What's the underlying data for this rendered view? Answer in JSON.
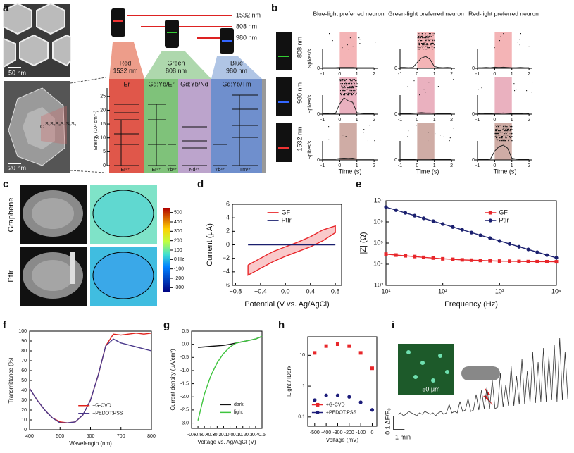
{
  "panel_labels": [
    "a",
    "b",
    "c",
    "d",
    "e",
    "f",
    "g",
    "h",
    "i"
  ],
  "panel_a": {
    "scale_bars": [
      "50 nm",
      "20 nm"
    ],
    "shell_labels": [
      "C",
      "S₁S₂S₃S₄S₅S₆"
    ],
    "wavelengths": [
      "1532 nm",
      "808 nm",
      "980 nm"
    ],
    "columns": [
      {
        "color_name": "Red",
        "wavelength": "1532 nm",
        "ion": "Er"
      },
      {
        "color_name": "Green",
        "wavelength": "808 nm",
        "ion": "Gd:Yb/Er"
      },
      {
        "ion": "Gd:Yb/Nd"
      },
      {
        "color_name": "Blue",
        "wavelength": "980 nm",
        "ion": "Gd:Yb/Tm"
      }
    ],
    "energy_axis_label": "Energy (10³ cm⁻¹)",
    "energy_ticks": [
      0,
      5,
      10,
      15,
      20,
      25
    ],
    "energy_lim": [
      0,
      28
    ],
    "ions": [
      "Er³⁺",
      "Er³⁺",
      "Yb³⁺",
      "Nd³⁺",
      "Yb³⁺",
      "Tm³⁺"
    ]
  },
  "panel_b": {
    "columns": [
      "Blue-light preferred neuron",
      "Green-light preferred neuron",
      "Red-light preferred neuron"
    ],
    "column_colors": [
      "#3b4cc0",
      "#2e9b3a",
      "#b22222"
    ],
    "rows": [
      "808 nm",
      "980 nm",
      "1532 nm"
    ],
    "row_shade_colors": [
      "#f2a7a9",
      "#e6a3b4",
      "#c79d95"
    ],
    "ylabel": "Spikes/s",
    "xlabel": "Time (s)",
    "xticks": [
      -1,
      0,
      1,
      2
    ],
    "xlim": [
      -1,
      2.2
    ],
    "yticks": [
      0
    ],
    "ylim": [
      0,
      100
    ],
    "stimulus": [
      0,
      1
    ],
    "x": [
      -1,
      -0.75,
      -0.5,
      -0.25,
      0,
      0.25,
      0.5,
      0.75,
      1,
      1.25,
      1.5,
      1.75,
      2
    ],
    "psth": [
      [
        [
          2,
          2,
          2,
          2,
          3,
          3,
          3,
          3,
          2,
          2,
          2,
          2,
          2
        ],
        [
          3,
          3,
          2,
          3,
          20,
          35,
          40,
          30,
          6,
          3,
          2,
          3,
          2
        ],
        [
          2,
          2,
          3,
          2,
          4,
          3,
          4,
          3,
          2,
          2,
          3,
          2,
          2
        ]
      ],
      [
        [
          2,
          2,
          3,
          2,
          35,
          55,
          45,
          40,
          5,
          3,
          2,
          2,
          2
        ],
        [
          2,
          2,
          2,
          3,
          4,
          5,
          4,
          4,
          3,
          2,
          2,
          2,
          2
        ],
        [
          2,
          3,
          2,
          2,
          3,
          3,
          4,
          3,
          2,
          2,
          2,
          3,
          2
        ]
      ],
      [
        [
          3,
          3,
          3,
          3,
          5,
          6,
          5,
          6,
          3,
          3,
          3,
          3,
          3
        ],
        [
          2,
          2,
          2,
          2,
          3,
          3,
          3,
          3,
          2,
          2,
          2,
          2,
          2
        ],
        [
          2,
          2,
          2,
          3,
          30,
          45,
          50,
          40,
          6,
          3,
          2,
          2,
          2
        ]
      ]
    ]
  },
  "panel_c": {
    "rows": [
      "Graphene",
      "PtIr"
    ],
    "colorbar": {
      "lim": [
        -350,
        550
      ],
      "ticks": [
        500,
        400,
        300,
        200,
        100,
        {
          "value": 0,
          "label": "0 Hz"
        },
        -100,
        -200,
        -300
      ]
    }
  },
  "chart_data": [
    {
      "type": "line",
      "panel": "d",
      "xlabel": "Potential (V vs. Ag/AgCl)",
      "ylabel": "Current (μA)",
      "xlim": [
        -0.85,
        0.9
      ],
      "ylim": [
        -6,
        6
      ],
      "xticks": [
        {
          "value": -0.8,
          "label": "−0.8"
        },
        {
          "value": -0.4,
          "label": "−0.4"
        },
        {
          "value": 0,
          "label": "0.0"
        },
        0.4,
        0.8
      ],
      "yticks": [
        {
          "value": -6,
          "label": "−6"
        },
        {
          "value": -4,
          "label": "−4"
        },
        {
          "value": -2,
          "label": "−2"
        },
        0,
        2,
        4,
        6
      ],
      "legend": "upper center",
      "series": [
        {
          "name": "GF",
          "color": "#e8262a",
          "filled": true,
          "x": [
            -0.6,
            -0.4,
            -0.2,
            0,
            0.2,
            0.4,
            0.6,
            0.8,
            0.8,
            0.6,
            0.4,
            0.2,
            0,
            -0.2,
            -0.4,
            -0.6,
            -0.6
          ],
          "values": [
            -3,
            -2,
            -1,
            -0.3,
            0.4,
            1.2,
            2.2,
            2.8,
            1.8,
            0.6,
            -0.3,
            -1,
            -1.7,
            -2.5,
            -3.5,
            -4.5,
            -3
          ]
        },
        {
          "name": "PtIr",
          "color": "#1a1f6e",
          "x": [
            -0.6,
            0.8
          ],
          "values": [
            0,
            0
          ]
        }
      ]
    },
    {
      "type": "line",
      "panel": "e",
      "xlabel": "Frequency (Hz)",
      "ylabel": "|Z| (Ω)",
      "log_x": true,
      "log_y": true,
      "xlim": [
        10,
        10000
      ],
      "ylim": [
        1000,
        10000000
      ],
      "xticks": [
        {
          "value": 10,
          "label": "10¹"
        },
        {
          "value": 100,
          "label": "10²"
        },
        {
          "value": 1000,
          "label": "10³"
        },
        {
          "value": 10000,
          "label": "10⁴"
        }
      ],
      "yticks": [
        {
          "value": 1000,
          "label": "10³"
        },
        {
          "value": 10000,
          "label": "10⁴"
        },
        {
          "value": 100000,
          "label": "10⁵"
        },
        {
          "value": 1000000,
          "label": "10⁶"
        },
        {
          "value": 10000000,
          "label": "10⁷"
        }
      ],
      "legend": "upper right",
      "x": [
        10,
        15,
        22,
        32,
        46,
        68,
        100,
        150,
        220,
        320,
        460,
        680,
        1000,
        1500,
        2200,
        3200,
        4600,
        6800,
        10000
      ],
      "series": [
        {
          "name": "GF",
          "color": "#e8262a",
          "marker": "square",
          "values": [
            30000,
            27000,
            25000,
            23000,
            21000,
            19500,
            18000,
            17000,
            16000,
            15500,
            15000,
            14500,
            14000,
            13800,
            13500,
            13300,
            13200,
            13100,
            13000
          ]
        },
        {
          "name": "PtIr",
          "color": "#1a1f6e",
          "marker": "circle",
          "values": [
            5000000,
            3620000,
            2670000,
            1980000,
            1480000,
            1080000,
            794000,
            574000,
            423000,
            313000,
            234000,
            171000,
            126000,
            91000,
            67000,
            50000,
            37000,
            27000,
            20000
          ]
        }
      ]
    },
    {
      "type": "line",
      "panel": "f",
      "xlabel": "Wavelength (nm)",
      "ylabel": "Transmittance (%)",
      "xlim": [
        400,
        800
      ],
      "ylim": [
        0,
        100
      ],
      "xticks": [
        400,
        500,
        600,
        700,
        800
      ],
      "yticks": [
        0,
        10,
        20,
        30,
        40,
        50,
        60,
        70,
        80,
        90,
        100
      ],
      "legend": "lower right",
      "x": [
        400,
        425,
        450,
        475,
        500,
        525,
        550,
        575,
        600,
        625,
        650,
        675,
        700,
        725,
        750,
        775,
        800
      ],
      "series": [
        {
          "name": "+G-CVD",
          "color": "#e0201b",
          "values": [
            42,
            30,
            20,
            12,
            8,
            7,
            8,
            15,
            30,
            55,
            85,
            97,
            96,
            97,
            98,
            97,
            98
          ]
        },
        {
          "name": "+PEDOT:PSS",
          "color": "#4b3a8c",
          "values": [
            42,
            30,
            20,
            12,
            7,
            7,
            8,
            15,
            30,
            55,
            85,
            92,
            88,
            86,
            84,
            82,
            80
          ]
        }
      ]
    },
    {
      "type": "line",
      "panel": "g",
      "xlabel": "Voltage vs. Ag/AgCl (V)",
      "ylabel": "Current density (μA/cm²)",
      "xlim": [
        -0.6,
        0.5
      ],
      "ylim": [
        -3.2,
        0.5
      ],
      "xticks": [
        -0.6,
        -0.5,
        -0.4,
        -0.3,
        -0.2,
        -0.1,
        {
          "value": 0,
          "label": "0.0"
        },
        0.1,
        0.2,
        0.3,
        0.4,
        0.5
      ],
      "yticks": [
        0.5,
        {
          "value": 0,
          "label": "0.0"
        },
        -0.5,
        {
          "value": -1,
          "label": "-1.0"
        },
        -1.5,
        {
          "value": -2,
          "label": "-2.0"
        },
        -2.5,
        {
          "value": -3,
          "label": "-3.0"
        }
      ],
      "legend": "lower right",
      "x": [
        -0.5,
        -0.4,
        -0.3,
        -0.2,
        -0.1,
        0,
        0.1,
        0.2,
        0.3,
        0.4,
        0.5
      ],
      "series": [
        {
          "name": "dark",
          "color": "#111111",
          "values": [
            -0.12,
            -0.1,
            -0.08,
            -0.06,
            -0.04,
            0,
            0.05,
            0.1,
            0.15,
            0.2,
            0.3
          ]
        },
        {
          "name": "light",
          "color": "#3ec43e",
          "values": [
            -2.9,
            -1.9,
            -1.2,
            -0.7,
            -0.35,
            -0.1,
            0.05,
            0.1,
            0.15,
            0.2,
            0.3
          ]
        }
      ]
    },
    {
      "type": "scatter",
      "panel": "h",
      "xlabel": "Voltage (mV)",
      "ylabel": "ILight / IDark",
      "log_y": true,
      "xlim": [
        -560,
        40
      ],
      "ylim": [
        0.05,
        40
      ],
      "xticks": [
        -500,
        -400,
        -300,
        -200,
        -100,
        0
      ],
      "yticks": [
        0.1,
        1,
        10
      ],
      "legend": "lower left",
      "x": [
        -500,
        -400,
        -300,
        -200,
        -100,
        0
      ],
      "series": [
        {
          "name": "+G-CVD",
          "color": "#e8262a",
          "marker": "square",
          "values": [
            12,
            20,
            23,
            20,
            12,
            3.8
          ]
        },
        {
          "name": "+PEDOT:PSS",
          "color": "#1c1c7a",
          "marker": "circle",
          "values": [
            0.35,
            0.5,
            0.5,
            0.45,
            0.3,
            0.17
          ]
        }
      ]
    },
    {
      "type": "trace",
      "panel": "i",
      "color": "#333333",
      "xlim": [
        0,
        16
      ],
      "ylim": [
        -0.05,
        0.6
      ],
      "scale_bar": {
        "x": 1,
        "x_label": "1 min",
        "y": 0.1,
        "y_label": "0.1 ΔF/F₀"
      },
      "inset_label": "50 μm",
      "x": [
        0,
        0.25,
        0.5,
        0.75,
        1,
        1.25,
        1.5,
        1.75,
        2,
        2.25,
        2.5,
        2.75,
        3,
        3.25,
        3.5,
        3.75,
        4,
        4.25,
        4.5,
        4.75,
        5,
        5.25,
        5.5,
        5.75,
        6,
        6.25,
        6.5,
        6.75,
        7,
        7.25,
        7.5,
        7.75,
        8,
        8.25,
        8.5,
        8.75,
        9,
        9.25,
        9.5,
        9.75,
        10,
        10.25,
        10.5,
        10.75,
        11,
        11.25,
        11.5,
        11.75,
        12,
        12.25,
        12.5,
        12.75,
        13,
        13.25,
        13.5,
        13.75,
        14,
        14.25,
        14.5,
        14.75,
        15,
        15.25,
        15.5,
        15.75
      ],
      "values": [
        0.01,
        0.02,
        0,
        0.01,
        0.03,
        0.02,
        0.01,
        0,
        0.02,
        0.01,
        0.03,
        0.02,
        0.01,
        0.02,
        0,
        0.02,
        0.03,
        0.01,
        0.02,
        0.08,
        0.02,
        0.03,
        0.02,
        0.1,
        0.03,
        0.04,
        0.12,
        0.03,
        0.04,
        0.15,
        0.04,
        0.18,
        0.05,
        0.2,
        0.05,
        0.25,
        0.05,
        0.06,
        0.3,
        0.06,
        0.22,
        0.07,
        0.35,
        0.07,
        0.28,
        0.08,
        0.4,
        0.08,
        0.32,
        0.09,
        0.45,
        0.09,
        0.38,
        0.1,
        0.48,
        0.1,
        0.42,
        0.11,
        0.5,
        0.1,
        0.55,
        0.11,
        0.45,
        0.12
      ]
    }
  ]
}
